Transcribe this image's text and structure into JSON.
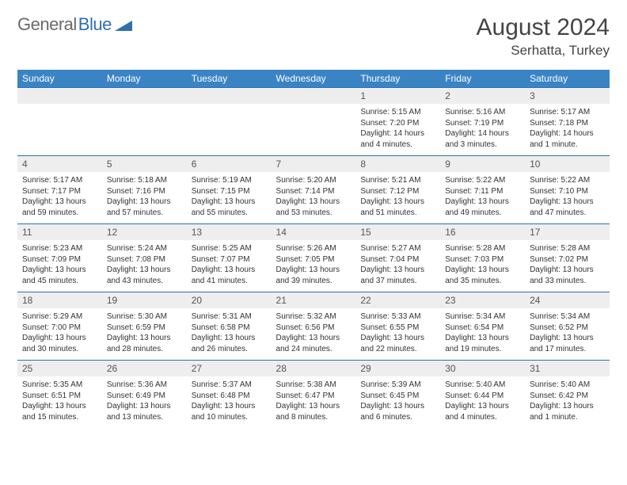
{
  "logo": {
    "part1": "General",
    "part2": "Blue"
  },
  "title": "August 2024",
  "location": "Serhatta, Turkey",
  "headers": [
    "Sunday",
    "Monday",
    "Tuesday",
    "Wednesday",
    "Thursday",
    "Friday",
    "Saturday"
  ],
  "colors": {
    "header_bg": "#3a84c6",
    "header_text": "#ffffff",
    "daynum_bg": "#eeeeee",
    "border": "#2f6fb0",
    "logo_gray": "#6a6a6a",
    "logo_blue": "#2f6fb0"
  },
  "weeks": [
    [
      {
        "n": "",
        "lines": []
      },
      {
        "n": "",
        "lines": []
      },
      {
        "n": "",
        "lines": []
      },
      {
        "n": "",
        "lines": []
      },
      {
        "n": "1",
        "lines": [
          "Sunrise: 5:15 AM",
          "Sunset: 7:20 PM",
          "Daylight: 14 hours and 4 minutes."
        ]
      },
      {
        "n": "2",
        "lines": [
          "Sunrise: 5:16 AM",
          "Sunset: 7:19 PM",
          "Daylight: 14 hours and 3 minutes."
        ]
      },
      {
        "n": "3",
        "lines": [
          "Sunrise: 5:17 AM",
          "Sunset: 7:18 PM",
          "Daylight: 14 hours and 1 minute."
        ]
      }
    ],
    [
      {
        "n": "4",
        "lines": [
          "Sunrise: 5:17 AM",
          "Sunset: 7:17 PM",
          "Daylight: 13 hours and 59 minutes."
        ]
      },
      {
        "n": "5",
        "lines": [
          "Sunrise: 5:18 AM",
          "Sunset: 7:16 PM",
          "Daylight: 13 hours and 57 minutes."
        ]
      },
      {
        "n": "6",
        "lines": [
          "Sunrise: 5:19 AM",
          "Sunset: 7:15 PM",
          "Daylight: 13 hours and 55 minutes."
        ]
      },
      {
        "n": "7",
        "lines": [
          "Sunrise: 5:20 AM",
          "Sunset: 7:14 PM",
          "Daylight: 13 hours and 53 minutes."
        ]
      },
      {
        "n": "8",
        "lines": [
          "Sunrise: 5:21 AM",
          "Sunset: 7:12 PM",
          "Daylight: 13 hours and 51 minutes."
        ]
      },
      {
        "n": "9",
        "lines": [
          "Sunrise: 5:22 AM",
          "Sunset: 7:11 PM",
          "Daylight: 13 hours and 49 minutes."
        ]
      },
      {
        "n": "10",
        "lines": [
          "Sunrise: 5:22 AM",
          "Sunset: 7:10 PM",
          "Daylight: 13 hours and 47 minutes."
        ]
      }
    ],
    [
      {
        "n": "11",
        "lines": [
          "Sunrise: 5:23 AM",
          "Sunset: 7:09 PM",
          "Daylight: 13 hours and 45 minutes."
        ]
      },
      {
        "n": "12",
        "lines": [
          "Sunrise: 5:24 AM",
          "Sunset: 7:08 PM",
          "Daylight: 13 hours and 43 minutes."
        ]
      },
      {
        "n": "13",
        "lines": [
          "Sunrise: 5:25 AM",
          "Sunset: 7:07 PM",
          "Daylight: 13 hours and 41 minutes."
        ]
      },
      {
        "n": "14",
        "lines": [
          "Sunrise: 5:26 AM",
          "Sunset: 7:05 PM",
          "Daylight: 13 hours and 39 minutes."
        ]
      },
      {
        "n": "15",
        "lines": [
          "Sunrise: 5:27 AM",
          "Sunset: 7:04 PM",
          "Daylight: 13 hours and 37 minutes."
        ]
      },
      {
        "n": "16",
        "lines": [
          "Sunrise: 5:28 AM",
          "Sunset: 7:03 PM",
          "Daylight: 13 hours and 35 minutes."
        ]
      },
      {
        "n": "17",
        "lines": [
          "Sunrise: 5:28 AM",
          "Sunset: 7:02 PM",
          "Daylight: 13 hours and 33 minutes."
        ]
      }
    ],
    [
      {
        "n": "18",
        "lines": [
          "Sunrise: 5:29 AM",
          "Sunset: 7:00 PM",
          "Daylight: 13 hours and 30 minutes."
        ]
      },
      {
        "n": "19",
        "lines": [
          "Sunrise: 5:30 AM",
          "Sunset: 6:59 PM",
          "Daylight: 13 hours and 28 minutes."
        ]
      },
      {
        "n": "20",
        "lines": [
          "Sunrise: 5:31 AM",
          "Sunset: 6:58 PM",
          "Daylight: 13 hours and 26 minutes."
        ]
      },
      {
        "n": "21",
        "lines": [
          "Sunrise: 5:32 AM",
          "Sunset: 6:56 PM",
          "Daylight: 13 hours and 24 minutes."
        ]
      },
      {
        "n": "22",
        "lines": [
          "Sunrise: 5:33 AM",
          "Sunset: 6:55 PM",
          "Daylight: 13 hours and 22 minutes."
        ]
      },
      {
        "n": "23",
        "lines": [
          "Sunrise: 5:34 AM",
          "Sunset: 6:54 PM",
          "Daylight: 13 hours and 19 minutes."
        ]
      },
      {
        "n": "24",
        "lines": [
          "Sunrise: 5:34 AM",
          "Sunset: 6:52 PM",
          "Daylight: 13 hours and 17 minutes."
        ]
      }
    ],
    [
      {
        "n": "25",
        "lines": [
          "Sunrise: 5:35 AM",
          "Sunset: 6:51 PM",
          "Daylight: 13 hours and 15 minutes."
        ]
      },
      {
        "n": "26",
        "lines": [
          "Sunrise: 5:36 AM",
          "Sunset: 6:49 PM",
          "Daylight: 13 hours and 13 minutes."
        ]
      },
      {
        "n": "27",
        "lines": [
          "Sunrise: 5:37 AM",
          "Sunset: 6:48 PM",
          "Daylight: 13 hours and 10 minutes."
        ]
      },
      {
        "n": "28",
        "lines": [
          "Sunrise: 5:38 AM",
          "Sunset: 6:47 PM",
          "Daylight: 13 hours and 8 minutes."
        ]
      },
      {
        "n": "29",
        "lines": [
          "Sunrise: 5:39 AM",
          "Sunset: 6:45 PM",
          "Daylight: 13 hours and 6 minutes."
        ]
      },
      {
        "n": "30",
        "lines": [
          "Sunrise: 5:40 AM",
          "Sunset: 6:44 PM",
          "Daylight: 13 hours and 4 minutes."
        ]
      },
      {
        "n": "31",
        "lines": [
          "Sunrise: 5:40 AM",
          "Sunset: 6:42 PM",
          "Daylight: 13 hours and 1 minute."
        ]
      }
    ]
  ]
}
